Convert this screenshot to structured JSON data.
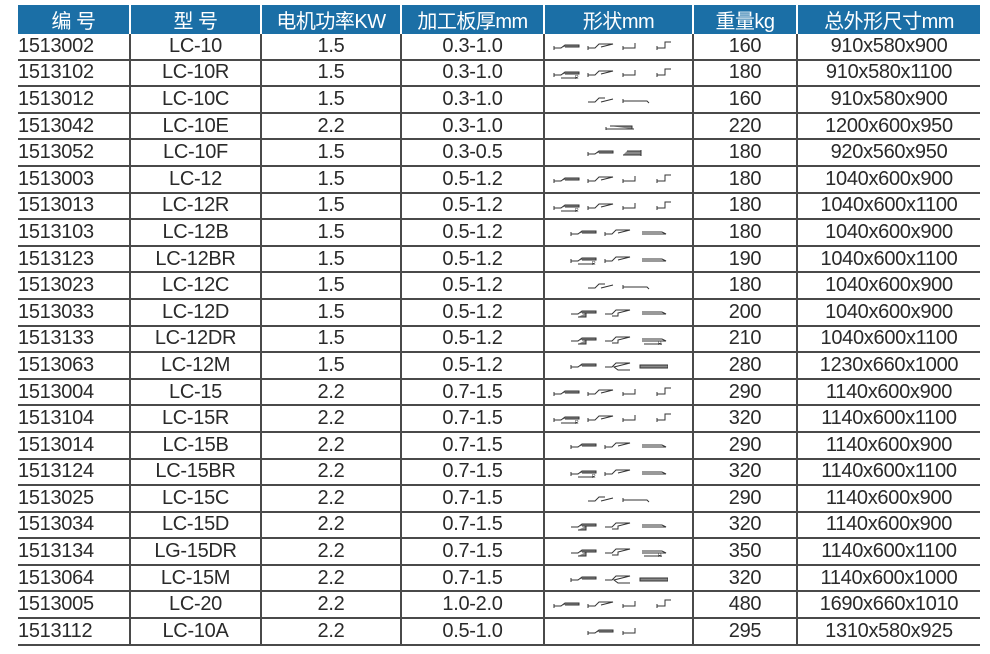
{
  "colors": {
    "header_bg": "#1b6fa6",
    "header_text": "#ffffff",
    "grid": "#4a4a4a",
    "text": "#2a2a2a"
  },
  "headers": [
    "编 号",
    "型 号",
    "电机功率KW",
    "加工板厚mm",
    "形状mm",
    "重量kg",
    "总外形尺寸mm"
  ],
  "rows": [
    {
      "code": "1513002",
      "model": "LC-10",
      "power": "1.5",
      "thickness": "0.3-1.0",
      "shapes": [
        "hem",
        "zflange",
        "u",
        "step"
      ],
      "weight": "160",
      "size": "910x580x900"
    },
    {
      "code": "1513102",
      "model": "LC-10R",
      "power": "1.5",
      "thickness": "0.3-1.0",
      "shapes": [
        "hem-r",
        "zflange",
        "u",
        "step"
      ],
      "weight": "180",
      "size": "910x580x1100"
    },
    {
      "code": "1513012",
      "model": "LC-10C",
      "power": "1.5",
      "thickness": "0.3-1.0",
      "shapes": [
        "zflange-open",
        "line"
      ],
      "weight": "160",
      "size": "910x580x900"
    },
    {
      "code": "1513042",
      "model": "LC-10E",
      "power": "2.2",
      "thickness": "0.3-1.0",
      "shapes": [
        "flat-hem"
      ],
      "weight": "220",
      "size": "1200x600x950"
    },
    {
      "code": "1513052",
      "model": "LC-10F",
      "power": "1.5",
      "thickness": "0.3-0.5",
      "shapes": [
        "hem",
        "box"
      ],
      "weight": "180",
      "size": "920x560x950"
    },
    {
      "code": "1513003",
      "model": "LC-12",
      "power": "1.5",
      "thickness": "0.5-1.2",
      "shapes": [
        "hem",
        "zflange",
        "u",
        "step"
      ],
      "weight": "180",
      "size": "1040x600x900"
    },
    {
      "code": "1513013",
      "model": "LC-12R",
      "power": "1.5",
      "thickness": "0.5-1.2",
      "shapes": [
        "hem-r",
        "zflange",
        "u",
        "step"
      ],
      "weight": "180",
      "size": "1040x600x1100"
    },
    {
      "code": "1513103",
      "model": "LC-12B",
      "power": "1.5",
      "thickness": "0.5-1.2",
      "shapes": [
        "hem",
        "zflange",
        "teardrop"
      ],
      "weight": "180",
      "size": "1040x600x900"
    },
    {
      "code": "1513123",
      "model": "LC-12BR",
      "power": "1.5",
      "thickness": "0.5-1.2",
      "shapes": [
        "hem-r",
        "zflange",
        "teardrop"
      ],
      "weight": "190",
      "size": "1040x600x1100"
    },
    {
      "code": "1513023",
      "model": "LC-12C",
      "power": "1.5",
      "thickness": "0.5-1.2",
      "shapes": [
        "zflange-open",
        "line"
      ],
      "weight": "180",
      "size": "1040x600x900"
    },
    {
      "code": "1513033",
      "model": "LC-12D",
      "power": "1.5",
      "thickness": "0.5-1.2",
      "shapes": [
        "hem-d",
        "zflange-d",
        "teardrop"
      ],
      "weight": "200",
      "size": "1040x600x900"
    },
    {
      "code": "1513133",
      "model": "LC-12DR",
      "power": "1.5",
      "thickness": "0.5-1.2",
      "shapes": [
        "hem-d",
        "zflange-d",
        "teardrop-r"
      ],
      "weight": "210",
      "size": "1040x600x1100"
    },
    {
      "code": "1513063",
      "model": "LC-12M",
      "power": "1.5",
      "thickness": "0.5-1.2",
      "shapes": [
        "hem",
        "zflange-s",
        "double"
      ],
      "weight": "280",
      "size": "1230x660x1000"
    },
    {
      "code": "1513004",
      "model": "LC-15",
      "power": "2.2",
      "thickness": "0.7-1.5",
      "shapes": [
        "hem",
        "zflange",
        "u",
        "step"
      ],
      "weight": "290",
      "size": "1140x600x900"
    },
    {
      "code": "1513104",
      "model": "LC-15R",
      "power": "2.2",
      "thickness": "0.7-1.5",
      "shapes": [
        "hem-r",
        "zflange",
        "u",
        "step"
      ],
      "weight": "320",
      "size": "1140x600x1100"
    },
    {
      "code": "1513014",
      "model": "LC-15B",
      "power": "2.2",
      "thickness": "0.7-1.5",
      "shapes": [
        "hem",
        "zflange",
        "teardrop"
      ],
      "weight": "290",
      "size": "1140x600x900"
    },
    {
      "code": "1513124",
      "model": "LC-15BR",
      "power": "2.2",
      "thickness": "0.7-1.5",
      "shapes": [
        "hem-r",
        "zflange",
        "teardrop"
      ],
      "weight": "320",
      "size": "1140x600x1100"
    },
    {
      "code": "1513025",
      "model": "LC-15C",
      "power": "2.2",
      "thickness": "0.7-1.5",
      "shapes": [
        "zflange-open",
        "line"
      ],
      "weight": "290",
      "size": "1140x600x900"
    },
    {
      "code": "1513034",
      "model": "LC-15D",
      "power": "2.2",
      "thickness": "0.7-1.5",
      "shapes": [
        "hem-d",
        "zflange-d",
        "teardrop"
      ],
      "weight": "320",
      "size": "1140x600x900"
    },
    {
      "code": "1513134",
      "model": "LG-15DR",
      "power": "2.2",
      "thickness": "0.7-1.5",
      "shapes": [
        "hem-d",
        "zflange-d",
        "teardrop-r"
      ],
      "weight": "350",
      "size": "1140x600x1100"
    },
    {
      "code": "1513064",
      "model": "LC-15M",
      "power": "2.2",
      "thickness": "0.7-1.5",
      "shapes": [
        "hem",
        "zflange-s",
        "double"
      ],
      "weight": "320",
      "size": "1140x600x1000"
    },
    {
      "code": "1513005",
      "model": "LC-20",
      "power": "2.2",
      "thickness": "1.0-2.0",
      "shapes": [
        "hem",
        "zflange",
        "u",
        "step"
      ],
      "weight": "480",
      "size": "1690x660x1010"
    },
    {
      "code": "1513112",
      "model": "LC-10A",
      "power": "2.2",
      "thickness": "0.5-1.0",
      "shapes": [
        "hem",
        "u"
      ],
      "weight": "295",
      "size": "1310x580x925"
    }
  ]
}
